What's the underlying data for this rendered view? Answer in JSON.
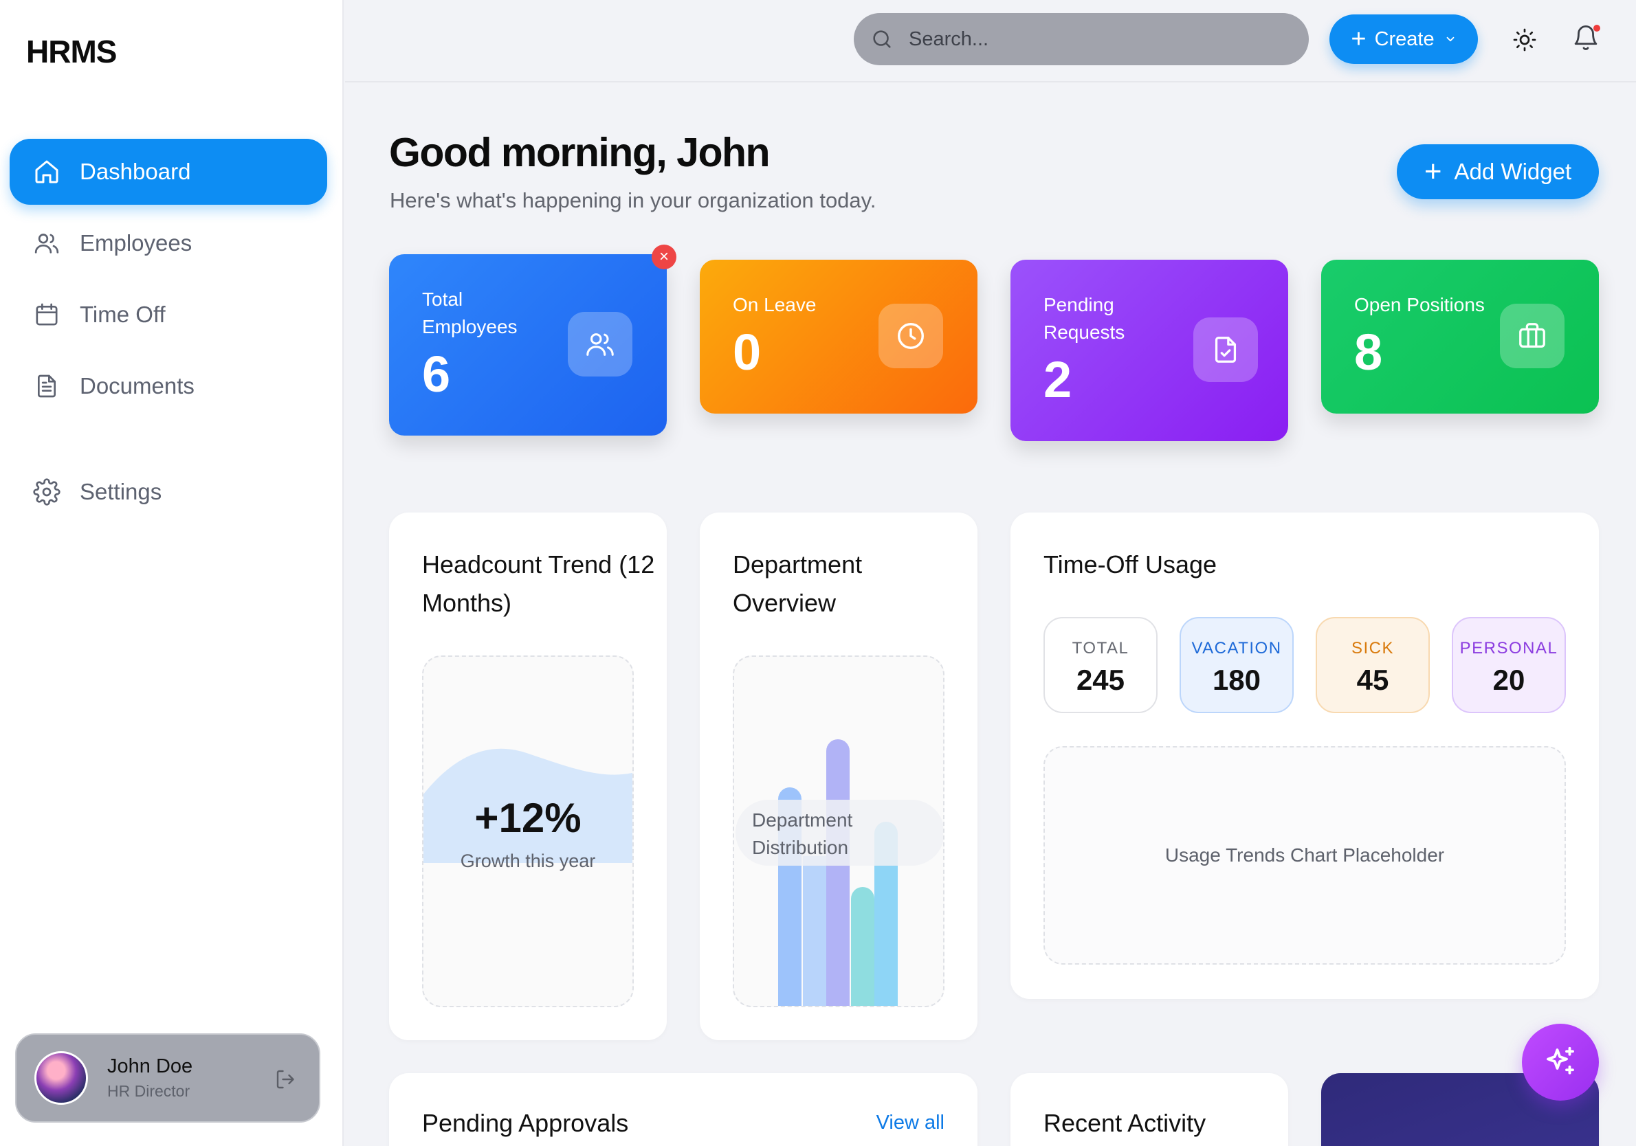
{
  "app": {
    "brand": "HRMS"
  },
  "sidebar": {
    "items": [
      {
        "label": "Dashboard",
        "icon": "home-icon",
        "active": true
      },
      {
        "label": "Employees",
        "icon": "users-icon"
      },
      {
        "label": "Time Off",
        "icon": "calendar-icon"
      },
      {
        "label": "Documents",
        "icon": "document-icon"
      },
      {
        "label": "Settings",
        "icon": "gear-icon"
      }
    ],
    "user": {
      "name": "John Doe",
      "role": "HR Director"
    }
  },
  "topbar": {
    "search_placeholder": "Search...",
    "create_label": "Create"
  },
  "header": {
    "greeting": "Good morning, John",
    "subtitle": "Here's what's happening in your organization today.",
    "add_widget_label": "Add Widget"
  },
  "stats": [
    {
      "label": "Total Employees",
      "value": "6",
      "icon": "users-icon",
      "color": "#1d63f0"
    },
    {
      "label": "On Leave",
      "value": "0",
      "icon": "clock-icon",
      "color": "#fb6a0c"
    },
    {
      "label": "Pending Requests",
      "value": "2",
      "icon": "file-check-icon",
      "color": "#8a1ef2"
    },
    {
      "label": "Open Positions",
      "value": "8",
      "icon": "briefcase-icon",
      "color": "#0bc152"
    }
  ],
  "widgets": {
    "headcount": {
      "title": "Headcount Trend (12 Months)",
      "value": "+12%",
      "caption": "Growth this year"
    },
    "department": {
      "title": "Department Overview",
      "caption": "Department Distribution"
    },
    "timeoff": {
      "title": "Time-Off Usage",
      "chips": [
        {
          "key": "TOTAL",
          "value": "245"
        },
        {
          "key": "VACATION",
          "value": "180"
        },
        {
          "key": "SICK",
          "value": "45"
        },
        {
          "key": "PERSONAL",
          "value": "20"
        }
      ],
      "placeholder": "Usage Trends Chart Placeholder"
    },
    "approvals": {
      "title": "Pending Approvals",
      "link": "View all"
    },
    "activity": {
      "title": "Recent Activity"
    }
  },
  "colors": {
    "accent": "#0d8df3",
    "alert": "#ee4545",
    "fab": "#a93af5"
  }
}
